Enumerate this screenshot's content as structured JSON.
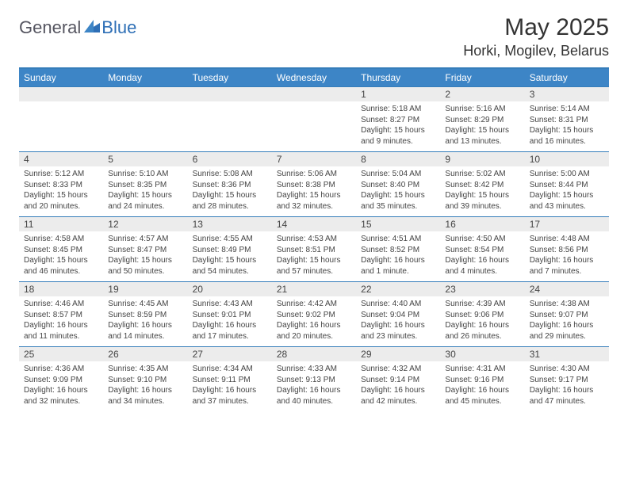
{
  "brand": {
    "text_general": "General",
    "text_blue": "Blue",
    "mark_color": "#2e6fb6"
  },
  "header": {
    "month_title": "May 2025",
    "location": "Horki, Mogilev, Belarus"
  },
  "colors": {
    "header_bar": "#3d85c6",
    "border": "#357dba",
    "daynum_bg": "#ececec",
    "text": "#333333",
    "body_text": "#444444"
  },
  "days_of_week": [
    "Sunday",
    "Monday",
    "Tuesday",
    "Wednesday",
    "Thursday",
    "Friday",
    "Saturday"
  ],
  "weeks": [
    [
      {
        "n": "",
        "sunrise": "",
        "sunset": "",
        "daylight": ""
      },
      {
        "n": "",
        "sunrise": "",
        "sunset": "",
        "daylight": ""
      },
      {
        "n": "",
        "sunrise": "",
        "sunset": "",
        "daylight": ""
      },
      {
        "n": "",
        "sunrise": "",
        "sunset": "",
        "daylight": ""
      },
      {
        "n": "1",
        "sunrise": "Sunrise: 5:18 AM",
        "sunset": "Sunset: 8:27 PM",
        "daylight": "Daylight: 15 hours and 9 minutes."
      },
      {
        "n": "2",
        "sunrise": "Sunrise: 5:16 AM",
        "sunset": "Sunset: 8:29 PM",
        "daylight": "Daylight: 15 hours and 13 minutes."
      },
      {
        "n": "3",
        "sunrise": "Sunrise: 5:14 AM",
        "sunset": "Sunset: 8:31 PM",
        "daylight": "Daylight: 15 hours and 16 minutes."
      }
    ],
    [
      {
        "n": "4",
        "sunrise": "Sunrise: 5:12 AM",
        "sunset": "Sunset: 8:33 PM",
        "daylight": "Daylight: 15 hours and 20 minutes."
      },
      {
        "n": "5",
        "sunrise": "Sunrise: 5:10 AM",
        "sunset": "Sunset: 8:35 PM",
        "daylight": "Daylight: 15 hours and 24 minutes."
      },
      {
        "n": "6",
        "sunrise": "Sunrise: 5:08 AM",
        "sunset": "Sunset: 8:36 PM",
        "daylight": "Daylight: 15 hours and 28 minutes."
      },
      {
        "n": "7",
        "sunrise": "Sunrise: 5:06 AM",
        "sunset": "Sunset: 8:38 PM",
        "daylight": "Daylight: 15 hours and 32 minutes."
      },
      {
        "n": "8",
        "sunrise": "Sunrise: 5:04 AM",
        "sunset": "Sunset: 8:40 PM",
        "daylight": "Daylight: 15 hours and 35 minutes."
      },
      {
        "n": "9",
        "sunrise": "Sunrise: 5:02 AM",
        "sunset": "Sunset: 8:42 PM",
        "daylight": "Daylight: 15 hours and 39 minutes."
      },
      {
        "n": "10",
        "sunrise": "Sunrise: 5:00 AM",
        "sunset": "Sunset: 8:44 PM",
        "daylight": "Daylight: 15 hours and 43 minutes."
      }
    ],
    [
      {
        "n": "11",
        "sunrise": "Sunrise: 4:58 AM",
        "sunset": "Sunset: 8:45 PM",
        "daylight": "Daylight: 15 hours and 46 minutes."
      },
      {
        "n": "12",
        "sunrise": "Sunrise: 4:57 AM",
        "sunset": "Sunset: 8:47 PM",
        "daylight": "Daylight: 15 hours and 50 minutes."
      },
      {
        "n": "13",
        "sunrise": "Sunrise: 4:55 AM",
        "sunset": "Sunset: 8:49 PM",
        "daylight": "Daylight: 15 hours and 54 minutes."
      },
      {
        "n": "14",
        "sunrise": "Sunrise: 4:53 AM",
        "sunset": "Sunset: 8:51 PM",
        "daylight": "Daylight: 15 hours and 57 minutes."
      },
      {
        "n": "15",
        "sunrise": "Sunrise: 4:51 AM",
        "sunset": "Sunset: 8:52 PM",
        "daylight": "Daylight: 16 hours and 1 minute."
      },
      {
        "n": "16",
        "sunrise": "Sunrise: 4:50 AM",
        "sunset": "Sunset: 8:54 PM",
        "daylight": "Daylight: 16 hours and 4 minutes."
      },
      {
        "n": "17",
        "sunrise": "Sunrise: 4:48 AM",
        "sunset": "Sunset: 8:56 PM",
        "daylight": "Daylight: 16 hours and 7 minutes."
      }
    ],
    [
      {
        "n": "18",
        "sunrise": "Sunrise: 4:46 AM",
        "sunset": "Sunset: 8:57 PM",
        "daylight": "Daylight: 16 hours and 11 minutes."
      },
      {
        "n": "19",
        "sunrise": "Sunrise: 4:45 AM",
        "sunset": "Sunset: 8:59 PM",
        "daylight": "Daylight: 16 hours and 14 minutes."
      },
      {
        "n": "20",
        "sunrise": "Sunrise: 4:43 AM",
        "sunset": "Sunset: 9:01 PM",
        "daylight": "Daylight: 16 hours and 17 minutes."
      },
      {
        "n": "21",
        "sunrise": "Sunrise: 4:42 AM",
        "sunset": "Sunset: 9:02 PM",
        "daylight": "Daylight: 16 hours and 20 minutes."
      },
      {
        "n": "22",
        "sunrise": "Sunrise: 4:40 AM",
        "sunset": "Sunset: 9:04 PM",
        "daylight": "Daylight: 16 hours and 23 minutes."
      },
      {
        "n": "23",
        "sunrise": "Sunrise: 4:39 AM",
        "sunset": "Sunset: 9:06 PM",
        "daylight": "Daylight: 16 hours and 26 minutes."
      },
      {
        "n": "24",
        "sunrise": "Sunrise: 4:38 AM",
        "sunset": "Sunset: 9:07 PM",
        "daylight": "Daylight: 16 hours and 29 minutes."
      }
    ],
    [
      {
        "n": "25",
        "sunrise": "Sunrise: 4:36 AM",
        "sunset": "Sunset: 9:09 PM",
        "daylight": "Daylight: 16 hours and 32 minutes."
      },
      {
        "n": "26",
        "sunrise": "Sunrise: 4:35 AM",
        "sunset": "Sunset: 9:10 PM",
        "daylight": "Daylight: 16 hours and 34 minutes."
      },
      {
        "n": "27",
        "sunrise": "Sunrise: 4:34 AM",
        "sunset": "Sunset: 9:11 PM",
        "daylight": "Daylight: 16 hours and 37 minutes."
      },
      {
        "n": "28",
        "sunrise": "Sunrise: 4:33 AM",
        "sunset": "Sunset: 9:13 PM",
        "daylight": "Daylight: 16 hours and 40 minutes."
      },
      {
        "n": "29",
        "sunrise": "Sunrise: 4:32 AM",
        "sunset": "Sunset: 9:14 PM",
        "daylight": "Daylight: 16 hours and 42 minutes."
      },
      {
        "n": "30",
        "sunrise": "Sunrise: 4:31 AM",
        "sunset": "Sunset: 9:16 PM",
        "daylight": "Daylight: 16 hours and 45 minutes."
      },
      {
        "n": "31",
        "sunrise": "Sunrise: 4:30 AM",
        "sunset": "Sunset: 9:17 PM",
        "daylight": "Daylight: 16 hours and 47 minutes."
      }
    ]
  ]
}
